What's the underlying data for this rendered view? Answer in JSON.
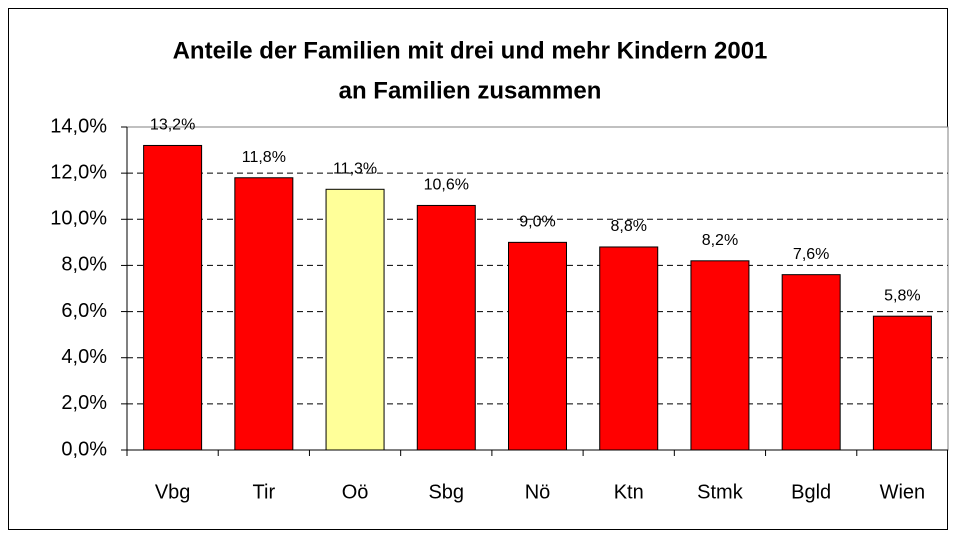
{
  "chart_data": {
    "type": "bar",
    "title": [
      "Anteile der Familien mit drei und mehr Kindern 2001",
      "an Familien zusammen"
    ],
    "categories": [
      "Vbg",
      "Tir",
      "Oö",
      "Sbg",
      "Nö",
      "Ktn",
      "Stmk",
      "Bgld",
      "Wien"
    ],
    "values": [
      13.2,
      11.8,
      11.3,
      10.6,
      9.0,
      8.8,
      8.2,
      7.6,
      5.8
    ],
    "value_labels": [
      "13,2%",
      "11,8%",
      "11,3%",
      "10,6%",
      "9,0%",
      "8,8%",
      "8,2%",
      "7,6%",
      "5,8%"
    ],
    "colors": [
      "#ff0000",
      "#ff0000",
      "#ffff99",
      "#ff0000",
      "#ff0000",
      "#ff0000",
      "#ff0000",
      "#ff0000",
      "#ff0000"
    ],
    "ylim": [
      0,
      14
    ],
    "yticks": [
      {
        "value": 0,
        "label": "0,0%"
      },
      {
        "value": 2,
        "label": "2,0%"
      },
      {
        "value": 4,
        "label": "4,0%"
      },
      {
        "value": 6,
        "label": "6,0%"
      },
      {
        "value": 8,
        "label": "8,0%"
      },
      {
        "value": 10,
        "label": "10,0%"
      },
      {
        "value": 12,
        "label": "12,0%"
      },
      {
        "value": 14,
        "label": "14,0%"
      }
    ],
    "grid": true
  }
}
